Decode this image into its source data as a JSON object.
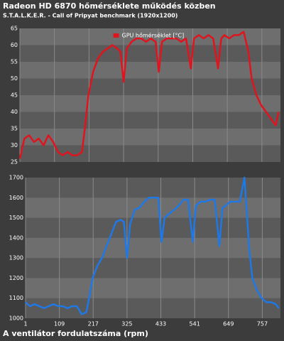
{
  "chart_data": [
    {
      "type": "line",
      "title": "Radeon HD 6870 hőmérséklete működés közben",
      "subtitle": "S.T.A.L.K.E.R. - Call of Pripyat benchmark (1920x1200)",
      "x": [
        1,
        15,
        30,
        45,
        60,
        75,
        90,
        105,
        120,
        135,
        150,
        165,
        180,
        195,
        205,
        215,
        230,
        245,
        260,
        275,
        290,
        305,
        315,
        325,
        335,
        350,
        365,
        380,
        395,
        410,
        425,
        435,
        445,
        460,
        475,
        490,
        505,
        520,
        535,
        545,
        560,
        575,
        590,
        605,
        620,
        630,
        640,
        655,
        670,
        685,
        700,
        715,
        725,
        740,
        755,
        770,
        785,
        800,
        810
      ],
      "series": [
        {
          "name": "GPU hőmérséklet [°C]",
          "color": "#e0141e",
          "values": [
            26,
            32,
            33,
            31,
            32,
            30,
            33,
            31,
            28,
            27,
            28,
            27,
            27,
            28,
            36,
            45,
            52,
            56,
            58,
            59,
            60,
            59,
            58,
            49,
            59,
            61,
            62,
            62,
            61,
            62,
            61,
            52,
            61,
            62,
            62,
            62,
            61,
            62,
            53,
            62,
            63,
            62,
            63,
            62,
            53,
            62,
            63,
            62,
            63,
            63,
            64,
            58,
            50,
            45,
            42,
            40,
            38,
            36,
            40
          ]
        }
      ],
      "xlim": [
        1,
        815
      ],
      "ylim": [
        25,
        65
      ],
      "yticks": [
        25,
        30,
        35,
        40,
        45,
        50,
        55,
        60,
        65
      ],
      "legend": "top"
    },
    {
      "type": "line",
      "title": "A ventilátor fordulatszáma (rpm)",
      "x": [
        1,
        15,
        30,
        45,
        60,
        75,
        90,
        105,
        120,
        135,
        150,
        165,
        180,
        195,
        205,
        215,
        230,
        245,
        260,
        275,
        290,
        305,
        315,
        325,
        335,
        350,
        365,
        380,
        395,
        410,
        425,
        435,
        445,
        460,
        475,
        490,
        505,
        520,
        535,
        545,
        560,
        575,
        590,
        605,
        620,
        630,
        640,
        655,
        670,
        685,
        700,
        715,
        725,
        740,
        755,
        770,
        785,
        800,
        810
      ],
      "series": [
        {
          "color": "#1e78e6",
          "values": [
            1080,
            1060,
            1070,
            1060,
            1050,
            1060,
            1070,
            1060,
            1060,
            1050,
            1060,
            1060,
            1020,
            1030,
            1110,
            1200,
            1260,
            1300,
            1360,
            1420,
            1480,
            1490,
            1480,
            1300,
            1470,
            1540,
            1550,
            1580,
            1600,
            1600,
            1600,
            1380,
            1500,
            1520,
            1540,
            1560,
            1590,
            1590,
            1380,
            1560,
            1580,
            1580,
            1590,
            1590,
            1360,
            1550,
            1560,
            1580,
            1580,
            1580,
            1700,
            1350,
            1200,
            1140,
            1100,
            1080,
            1080,
            1070,
            1050
          ]
        }
      ],
      "xlim": [
        1,
        815
      ],
      "xticks": [
        1,
        109,
        217,
        325,
        433,
        541,
        649,
        757
      ],
      "ylim": [
        1000,
        1700
      ],
      "yticks": [
        1000,
        1100,
        1200,
        1300,
        1400,
        1500,
        1600,
        1700
      ]
    }
  ]
}
